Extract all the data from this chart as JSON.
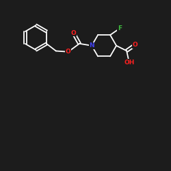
{
  "bg_color": "#1c1c1c",
  "line_color": "#ffffff",
  "atom_colors": {
    "O": "#ff2020",
    "N": "#4040ee",
    "F": "#40c040",
    "OH": "#ff2020"
  },
  "figsize": [
    2.5,
    2.5
  ],
  "dpi": 100
}
